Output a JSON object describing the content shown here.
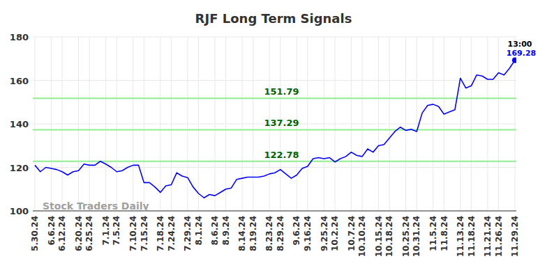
{
  "chart_data": {
    "type": "line",
    "title": "RJF Long Term Signals",
    "watermark": "Stock Traders Daily",
    "color": "#0000ff",
    "grid": true,
    "ylim": [
      100,
      180
    ],
    "yticks": [
      100,
      120,
      140,
      160,
      180
    ],
    "categories": [
      "5.30.24",
      null,
      null,
      "6.6.24",
      null,
      "6.12.24",
      null,
      null,
      "6.20.24",
      null,
      "6.25.24",
      null,
      null,
      "7.1.24",
      null,
      "7.5.24",
      null,
      null,
      "7.10.24",
      null,
      "7.15.24",
      null,
      null,
      "7.18.24",
      null,
      "7.24.24",
      null,
      null,
      "7.29.24",
      null,
      "8.1.24",
      null,
      null,
      "8.6.24",
      null,
      "8.9.24",
      null,
      null,
      "8.14.24",
      null,
      "8.19.24",
      null,
      null,
      "8.23.24",
      null,
      "8.29.24",
      null,
      null,
      "9.6.24",
      null,
      "9.16.24",
      null,
      null,
      "9.25.24",
      null,
      "10.2.24",
      null,
      null,
      "10.7.24",
      null,
      "10.10.24",
      null,
      null,
      "10.15.24",
      null,
      "10.18.24",
      null,
      null,
      "10.25.24",
      null,
      "10.31.24",
      null,
      null,
      "11.5.24",
      null,
      "11.8.24",
      null,
      null,
      "11.13.24",
      null,
      "11.18.24",
      null,
      null,
      "11.21.24",
      null,
      "11.26.24",
      null,
      null,
      "11.29.24"
    ],
    "values": [
      121,
      118,
      120,
      119.5,
      119,
      118,
      116.5,
      118,
      118.5,
      121.5,
      121,
      121,
      122.8,
      121.5,
      120,
      118,
      118.5,
      120,
      121,
      121,
      113,
      113,
      111,
      108.5,
      111.5,
      112,
      117.5,
      116,
      115.3,
      111,
      108,
      106,
      107.5,
      107,
      108.5,
      110,
      110.5,
      114.5,
      115,
      115.5,
      115.5,
      115.5,
      116,
      117,
      117.5,
      119,
      117,
      115,
      116.5,
      119.5,
      120.5,
      124,
      124.5,
      124,
      124.5,
      122.5,
      124,
      125,
      127,
      125.5,
      125,
      128.5,
      127,
      130,
      130.5,
      133.5,
      136.5,
      138.5,
      137,
      137.5,
      136.5,
      145,
      148.5,
      149,
      148,
      144.5,
      145.5,
      146.5,
      161,
      156.5,
      157.5,
      162.5,
      162,
      160.5,
      160.5,
      163.5,
      162.5,
      165.5,
      169.28
    ],
    "reference_lines": [
      {
        "value": 151.79,
        "label": "151.79"
      },
      {
        "value": 137.29,
        "label": "137.29"
      },
      {
        "value": 122.78,
        "label": "122.78"
      }
    ],
    "last_time": "13:00",
    "last_value_label": "169.28"
  }
}
